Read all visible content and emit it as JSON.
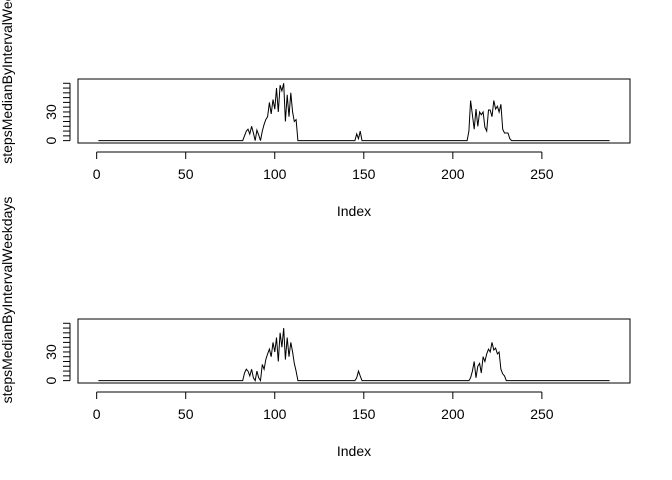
{
  "chart_data": [
    {
      "type": "line",
      "title": "",
      "xlabel": "Index",
      "ylabel": "stepsMedianByIntervalWeekends",
      "xlim": [
        1,
        288
      ],
      "ylim": [
        0,
        62
      ],
      "xticks": [
        0,
        50,
        100,
        150,
        200,
        250
      ],
      "yticks": [
        0,
        30
      ],
      "grid": false,
      "legend": "none",
      "color": "#000000",
      "x": [
        1,
        82,
        83,
        84,
        85,
        86,
        87,
        88,
        89,
        90,
        91,
        92,
        93,
        94,
        95,
        96,
        97,
        98,
        99,
        100,
        101,
        102,
        103,
        104,
        105,
        106,
        107,
        108,
        109,
        110,
        111,
        112,
        113,
        114,
        145,
        146,
        147,
        148,
        149,
        208,
        209,
        210,
        211,
        212,
        213,
        214,
        215,
        216,
        217,
        218,
        219,
        220,
        221,
        222,
        223,
        224,
        225,
        226,
        227,
        228,
        229,
        230,
        231,
        232,
        233,
        234,
        288
      ],
      "y": [
        0,
        0,
        5,
        10,
        12,
        7,
        15,
        8,
        0,
        11,
        6,
        0,
        10,
        17,
        22,
        25,
        40,
        28,
        43,
        33,
        55,
        30,
        58,
        52,
        60,
        20,
        48,
        25,
        50,
        30,
        20,
        22,
        0,
        0,
        0,
        7,
        2,
        10,
        0,
        0,
        10,
        42,
        27,
        12,
        33,
        15,
        30,
        27,
        30,
        14,
        10,
        32,
        32,
        25,
        42,
        33,
        36,
        30,
        38,
        12,
        8,
        8,
        8,
        2,
        0,
        0,
        0
      ]
    },
    {
      "type": "line",
      "title": "",
      "xlabel": "Index",
      "ylabel": "stepsMedianByIntervalWeekdays",
      "xlim": [
        1,
        288
      ],
      "ylim": [
        0,
        62
      ],
      "xticks": [
        0,
        50,
        100,
        150,
        200,
        250
      ],
      "yticks": [
        0,
        30
      ],
      "grid": false,
      "legend": "none",
      "color": "#000000",
      "x": [
        1,
        82,
        83,
        84,
        85,
        86,
        87,
        88,
        89,
        90,
        91,
        92,
        93,
        94,
        95,
        96,
        97,
        98,
        99,
        100,
        101,
        102,
        103,
        104,
        105,
        106,
        107,
        108,
        109,
        110,
        111,
        112,
        113,
        114,
        145,
        146,
        147,
        148,
        149,
        208,
        209,
        210,
        211,
        212,
        213,
        214,
        215,
        216,
        217,
        218,
        219,
        220,
        221,
        222,
        223,
        224,
        225,
        226,
        227,
        228,
        229,
        230,
        231,
        232,
        233,
        288
      ],
      "y": [
        0,
        0,
        8,
        12,
        10,
        5,
        12,
        3,
        0,
        10,
        3,
        0,
        17,
        12,
        22,
        28,
        33,
        25,
        40,
        30,
        45,
        20,
        50,
        35,
        55,
        22,
        45,
        25,
        40,
        30,
        18,
        10,
        0,
        0,
        0,
        3,
        10,
        5,
        0,
        0,
        0,
        3,
        10,
        20,
        3,
        15,
        18,
        8,
        25,
        20,
        28,
        33,
        30,
        40,
        32,
        34,
        28,
        30,
        12,
        7,
        5,
        0,
        0,
        0,
        0,
        0
      ]
    }
  ]
}
